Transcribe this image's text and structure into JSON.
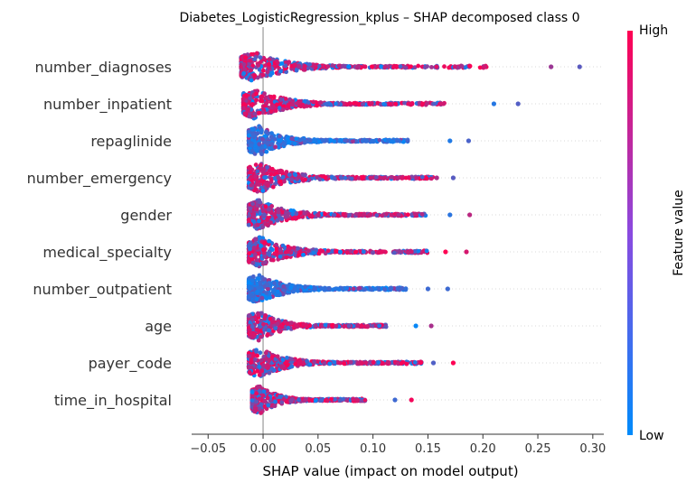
{
  "chart_data": {
    "type": "scatter",
    "title": "Diabetes_LogisticRegression_kplus – SHAP decomposed class 0",
    "xlabel": "SHAP value (impact on model output)",
    "xlim": [
      -0.065,
      0.31
    ],
    "xticks": [
      {
        "value": -0.05,
        "label": "−0.05"
      },
      {
        "value": 0.0,
        "label": "0.00"
      },
      {
        "value": 0.05,
        "label": "0.05"
      },
      {
        "value": 0.1,
        "label": "0.10"
      },
      {
        "value": 0.15,
        "label": "0.15"
      },
      {
        "value": 0.2,
        "label": "0.20"
      },
      {
        "value": 0.25,
        "label": "0.25"
      },
      {
        "value": 0.3,
        "label": "0.30"
      }
    ],
    "colorbar": {
      "label": "Feature value",
      "high_label": "High",
      "low_label": "Low",
      "low_color": "#008bfb",
      "high_color": "#ff0052"
    },
    "features": [
      {
        "name": "number_diagnoses",
        "core_min": -0.02,
        "core_max": 0.14,
        "tail_max": 0.205,
        "outliers": [
          0.262,
          0.288
        ],
        "color_mode": "mixed_red"
      },
      {
        "name": "number_inpatient",
        "core_min": -0.018,
        "core_max": 0.13,
        "tail_max": 0.165,
        "outliers": [
          0.21,
          0.232
        ],
        "color_mode": "mixed_red"
      },
      {
        "name": "repaglinide",
        "core_min": -0.013,
        "core_max": 0.11,
        "tail_max": 0.132,
        "outliers": [
          0.17,
          0.187
        ],
        "color_mode": "blue"
      },
      {
        "name": "number_emergency",
        "core_min": -0.013,
        "core_max": 0.13,
        "tail_max": 0.155,
        "outliers": [
          0.158,
          0.173
        ],
        "color_mode": "mixed_red"
      },
      {
        "name": "gender",
        "core_min": -0.013,
        "core_max": 0.12,
        "tail_max": 0.148,
        "outliers": [
          0.17,
          0.188
        ],
        "color_mode": "mixed"
      },
      {
        "name": "medical_specialty",
        "core_min": -0.013,
        "core_max": 0.13,
        "tail_max": 0.15,
        "outliers": [
          0.166,
          0.185
        ],
        "color_mode": "mixed"
      },
      {
        "name": "number_outpatient",
        "core_min": -0.013,
        "core_max": 0.11,
        "tail_max": 0.13,
        "outliers": [
          0.15,
          0.168
        ],
        "color_mode": "blue"
      },
      {
        "name": "age",
        "core_min": -0.013,
        "core_max": 0.1,
        "tail_max": 0.112,
        "outliers": [
          0.139,
          0.153
        ],
        "color_mode": "mixed"
      },
      {
        "name": "payer_code",
        "core_min": -0.013,
        "core_max": 0.12,
        "tail_max": 0.145,
        "outliers": [
          0.155,
          0.173
        ],
        "color_mode": "mixed"
      },
      {
        "name": "time_in_hospital",
        "core_min": -0.01,
        "core_max": 0.08,
        "tail_max": 0.093,
        "outliers": [
          0.12,
          0.135
        ],
        "color_mode": "mixed"
      }
    ]
  }
}
